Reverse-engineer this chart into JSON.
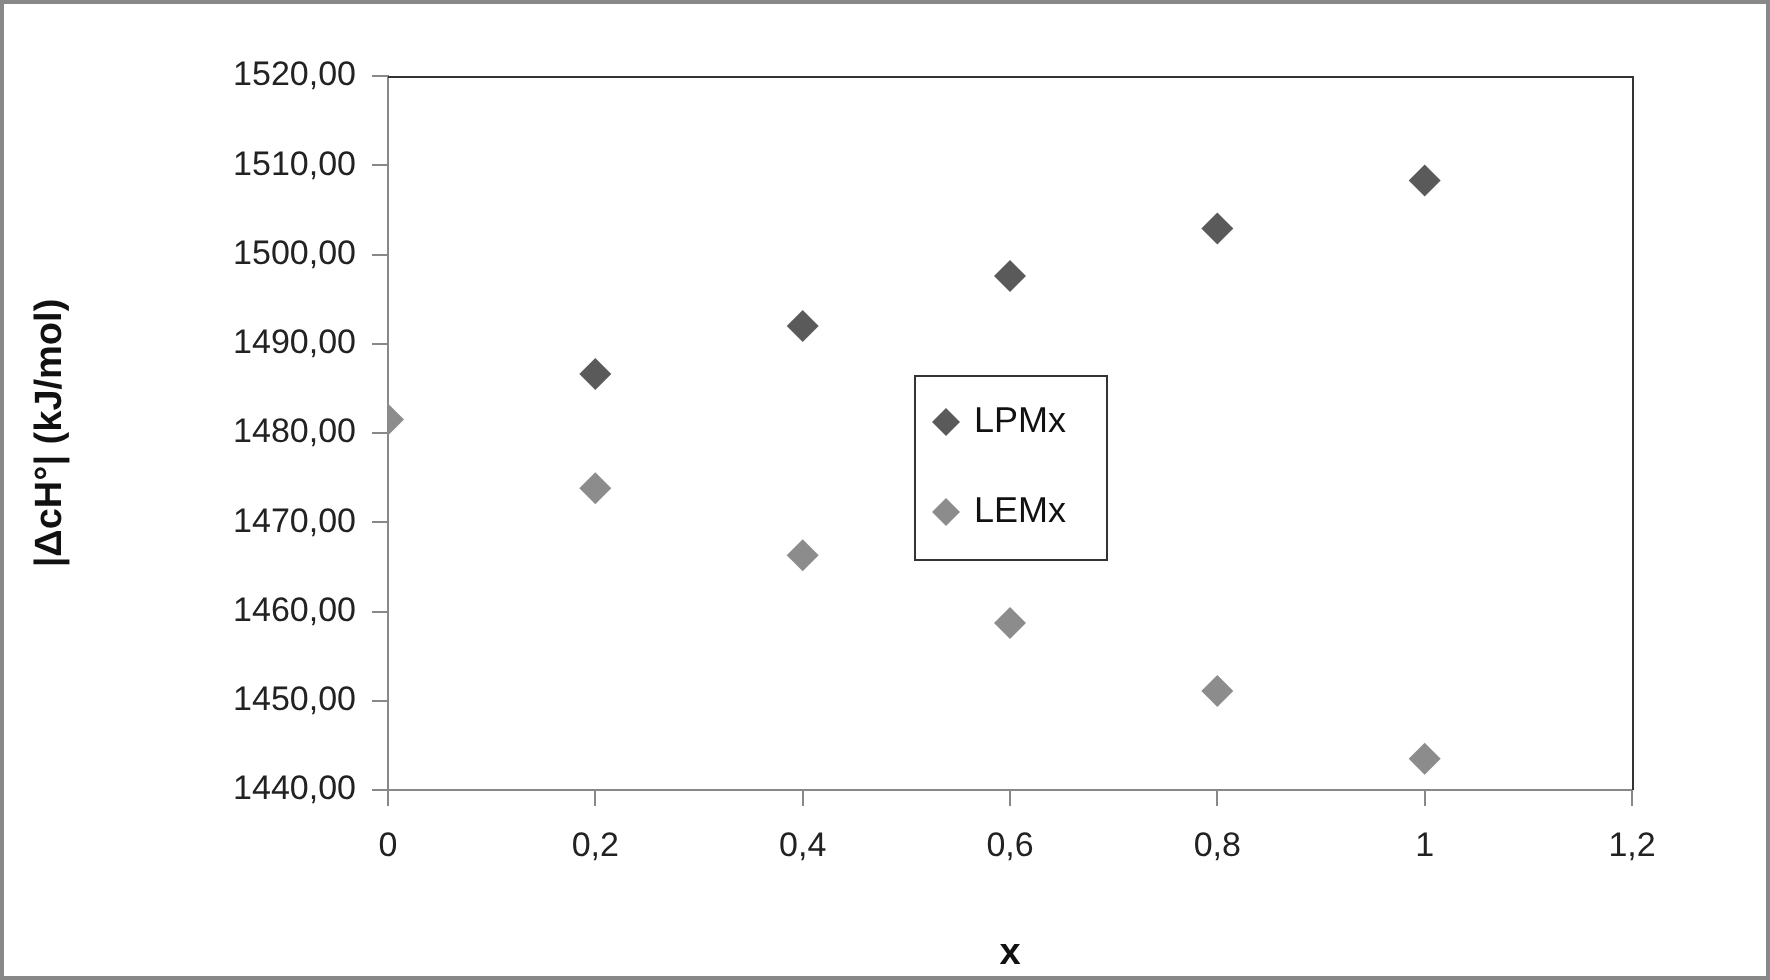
{
  "chart_data": {
    "type": "scatter",
    "xlabel": "x",
    "ylabel": "|ΔcH°| (kJ/mol)",
    "x": [
      0,
      0.2,
      0.4,
      0.6,
      0.8,
      1
    ],
    "series": [
      {
        "name": "LPMx",
        "color": "#5a5a5a",
        "values": [
          null,
          1486.6,
          1492.0,
          1497.6,
          1502.9,
          1508.3
        ]
      },
      {
        "name": "LEMx",
        "color": "#8c8c8c",
        "values": [
          1481.5,
          1473.8,
          1466.3,
          1458.7,
          1451.1,
          1443.5
        ]
      }
    ],
    "xlim": [
      0,
      1.2
    ],
    "xticks": [
      0,
      {
        "value": 0.2,
        "label": "0,2"
      },
      {
        "value": 0.4,
        "label": "0,4"
      },
      {
        "value": 0.6,
        "label": "0,6"
      },
      {
        "value": 0.8,
        "label": "0,8"
      },
      1,
      {
        "value": 1.2,
        "label": "1,2"
      }
    ],
    "ylim": [
      1440,
      1520
    ],
    "yticks": [
      {
        "value": 1440,
        "label": "1440,00"
      },
      {
        "value": 1450,
        "label": "1450,00"
      },
      {
        "value": 1460,
        "label": "1460,00"
      },
      {
        "value": 1470,
        "label": "1470,00"
      },
      {
        "value": 1480,
        "label": "1480,00"
      },
      {
        "value": 1490,
        "label": "1490,00"
      },
      {
        "value": 1500,
        "label": "1500,00"
      },
      {
        "value": 1510,
        "label": "1510,00"
      },
      {
        "value": 1520,
        "label": "1520,00"
      }
    ],
    "grid": false,
    "legend": "center",
    "marker": "diamond"
  }
}
